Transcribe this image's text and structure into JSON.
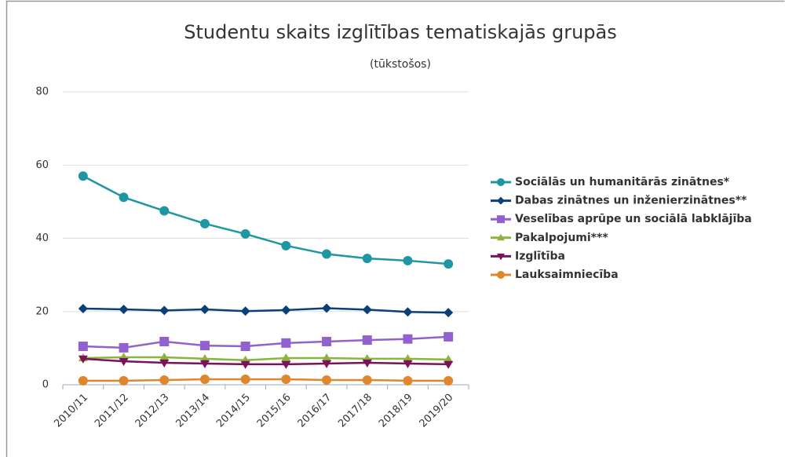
{
  "chart_data": {
    "type": "line",
    "title": "Studentu skaits izglītības tematiskajās grupās",
    "subtitle": "(tūkstošos)",
    "categories": [
      "2010/11",
      "2011/12",
      "2012/13",
      "2013/14",
      "2014/15",
      "2015/16",
      "2016/17",
      "2017/18",
      "2018/19",
      "2019/20"
    ],
    "series": [
      {
        "name": "Sociālās un humanitārās zinātnes*",
        "color": "#1f97a3",
        "marker": "circle",
        "values": [
          57,
          51.2,
          47.5,
          44,
          41.2,
          38,
          35.7,
          34.5,
          33.9,
          33
        ]
      },
      {
        "name": "Dabas zinātnes un inženierzinātnes**",
        "color": "#0b3f78",
        "marker": "diamond",
        "values": [
          20.8,
          20.6,
          20.3,
          20.6,
          20.1,
          20.4,
          20.9,
          20.5,
          19.9,
          19.7
        ]
      },
      {
        "name": "Veselības aprūpe un sociālā labklājība",
        "color": "#9061cf",
        "marker": "square",
        "values": [
          10.5,
          10.1,
          11.8,
          10.7,
          10.5,
          11.4,
          11.8,
          12.2,
          12.5,
          13.1
        ]
      },
      {
        "name": "Pakalpojumi***",
        "color": "#8cb33c",
        "marker": "triangle-up",
        "values": [
          7.3,
          7.5,
          7.5,
          7.1,
          6.7,
          7.3,
          7.3,
          7.1,
          7.1,
          6.9
        ]
      },
      {
        "name": "Izglītība",
        "color": "#7c1259",
        "marker": "triangle-down",
        "values": [
          7.1,
          6.4,
          6,
          5.8,
          5.6,
          5.6,
          5.8,
          6,
          5.8,
          5.6
        ]
      },
      {
        "name": "Lauksaimniecība",
        "color": "#e0862c",
        "marker": "circle",
        "values": [
          1.1,
          1.1,
          1.3,
          1.5,
          1.5,
          1.5,
          1.3,
          1.3,
          1.1,
          1.1
        ]
      }
    ],
    "ylim": [
      0,
      80
    ],
    "yticks": [
      0,
      20,
      40,
      60,
      80
    ],
    "grid": true,
    "legend": "right"
  }
}
